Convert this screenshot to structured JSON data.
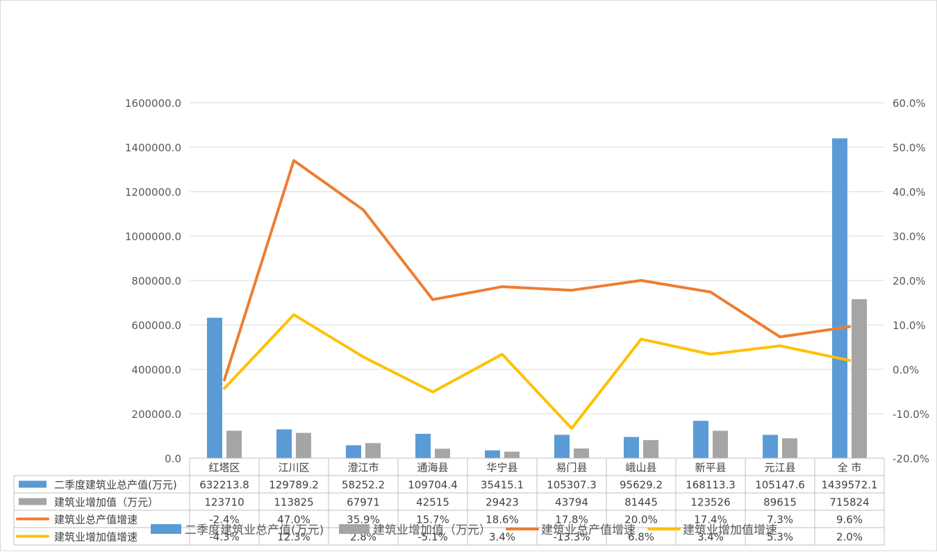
{
  "chart_data": {
    "type": "bar",
    "categories": [
      "红塔区",
      "江川区",
      "澄江市",
      "通海县",
      "华宁县",
      "易门县",
      "峨山县",
      "新平县",
      "元江县",
      "全  市"
    ],
    "series": [
      {
        "name": "二季度建筑业总产值(万元)",
        "type": "bar",
        "axis": "left",
        "color": "#5B9BD5",
        "values": [
          632213.8,
          129789.2,
          58252.2,
          109704.4,
          35415.1,
          105307.3,
          95629.2,
          168113.3,
          105147.6,
          1439572.1
        ],
        "labels": [
          "632213.8",
          "129789.2",
          "58252.2",
          "109704.4",
          "35415.1",
          "105307.3",
          "95629.2",
          "168113.3",
          "105147.6",
          "1439572.1"
        ]
      },
      {
        "name": "建筑业增加值（万元）",
        "type": "bar",
        "axis": "left",
        "color": "#A5A5A5",
        "values": [
          123710,
          113825,
          67971,
          42515,
          29423,
          43794,
          81445,
          123526,
          89615,
          715824
        ],
        "labels": [
          "123710",
          "113825",
          "67971",
          "42515",
          "29423",
          "43794",
          "81445",
          "123526",
          "89615",
          "715824"
        ]
      },
      {
        "name": "建筑业总产值增速",
        "type": "line",
        "axis": "right",
        "color": "#ED7D31",
        "values": [
          -2.4,
          47.0,
          35.9,
          15.7,
          18.6,
          17.8,
          20.0,
          17.4,
          7.3,
          9.6
        ],
        "labels": [
          "-2.4%",
          "47.0%",
          "35.9%",
          "15.7%",
          "18.6%",
          "17.8%",
          "20.0%",
          "17.4%",
          "7.3%",
          "9.6%"
        ]
      },
      {
        "name": "建筑业增加值增速",
        "type": "line",
        "axis": "right",
        "color": "#FFC000",
        "values": [
          -4.3,
          12.3,
          2.8,
          -5.1,
          3.4,
          -13.3,
          6.8,
          3.4,
          5.3,
          2.0
        ],
        "labels": [
          "-4.3%",
          "12.3%",
          "2.8%",
          "-5.1%",
          "3.4%",
          "-13.3%",
          "6.8%",
          "3.4%",
          "5.3%",
          "2.0%"
        ]
      }
    ],
    "y_left": {
      "ylim": [
        0,
        1600000
      ],
      "ticks": [
        0,
        200000,
        400000,
        600000,
        800000,
        1000000,
        1200000,
        1400000,
        1600000
      ],
      "tick_labels": [
        "0.0",
        "200000.0",
        "400000.0",
        "600000.0",
        "800000.0",
        "1000000.0",
        "1200000.0",
        "1400000.0",
        "1600000.0"
      ]
    },
    "y_right": {
      "ylim": [
        -20,
        60
      ],
      "ticks": [
        -20,
        -10,
        0,
        10,
        20,
        30,
        40,
        50,
        60
      ],
      "tick_labels": [
        "-20.0%",
        "-10.0%",
        "0.0%",
        "10.0%",
        "20.0%",
        "30.0%",
        "40.0%",
        "50.0%",
        "60.0%"
      ]
    },
    "grid": true,
    "data_table": true,
    "legend": "bottom"
  }
}
